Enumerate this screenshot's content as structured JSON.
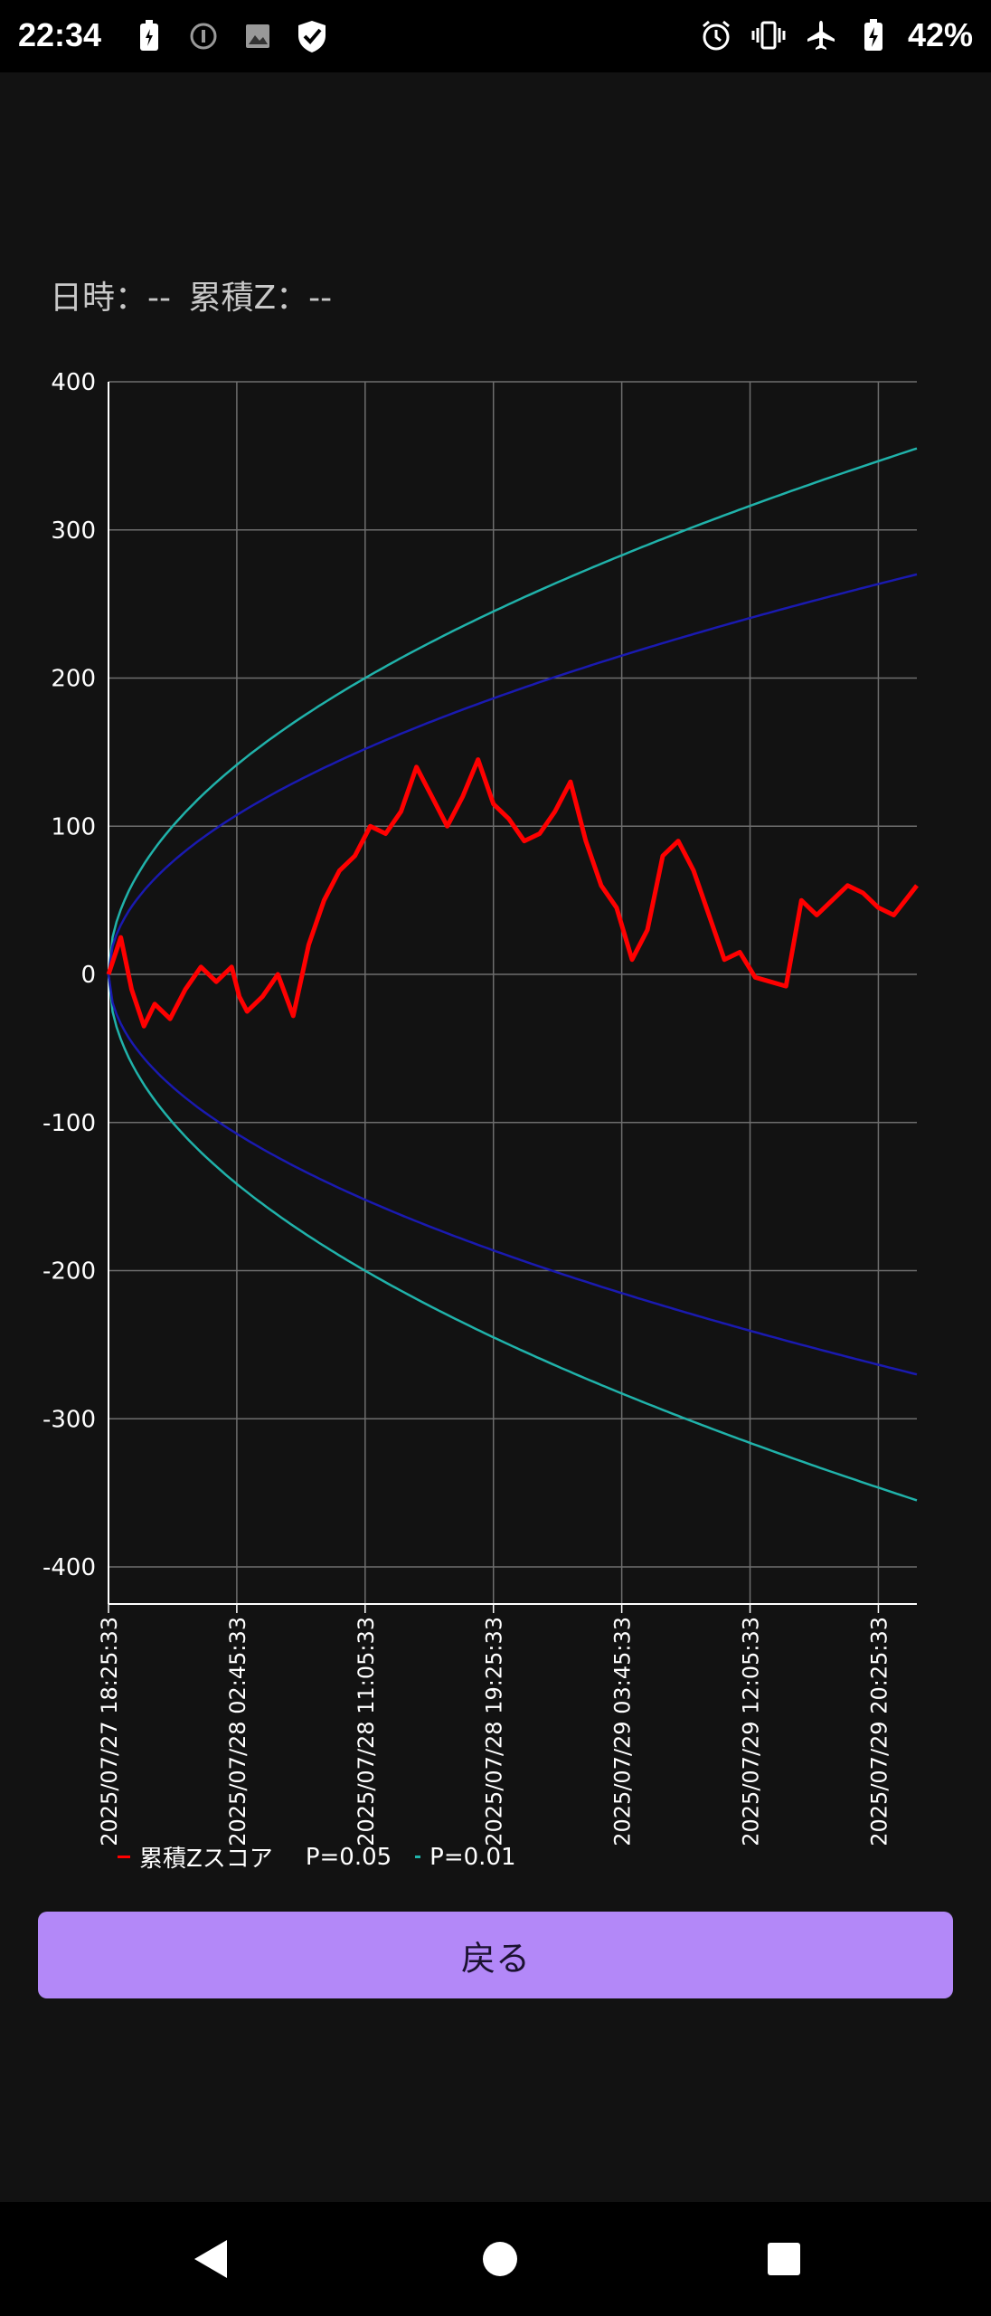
{
  "status_bar": {
    "time": "22:34",
    "left_icons": [
      "battery-saver-icon",
      "info-icon",
      "image-icon",
      "shield-check-icon"
    ],
    "right_icons": [
      "alarm-icon",
      "vibrate-icon",
      "airplane-icon",
      "battery-charging-icon"
    ],
    "battery": "42%"
  },
  "header": {
    "datetime_label": "日時：--",
    "cumulative_label": "累積Z：--"
  },
  "chart_data": {
    "type": "line",
    "x_tick_labels": [
      "2025/07/27 18:25:33",
      "2025/07/28 02:45:33",
      "2025/07/28 11:05:33",
      "2025/07/28 19:25:33",
      "2025/07/29 03:45:33",
      "2025/07/29 12:05:33",
      "2025/07/29 20:25:33"
    ],
    "x_range_hours": [
      0,
      52.5
    ],
    "ylim": [
      -425,
      400
    ],
    "y_ticks": [
      400,
      300,
      200,
      100,
      0,
      -100,
      -200,
      -300,
      -400
    ],
    "grid": true,
    "legend_position": "bottom-left",
    "series": [
      {
        "name": "累積Zスコア",
        "color": "#ff0000",
        "x": [
          0,
          0.8,
          1.5,
          2.3,
          3.0,
          4.0,
          5.0,
          6.0,
          7.0,
          8.0,
          8.5,
          9.0,
          10.0,
          11.0,
          12.0,
          13.0,
          14.0,
          15.0,
          16.0,
          17.0,
          18.0,
          19.0,
          20.0,
          21.0,
          22.0,
          23.0,
          24.0,
          25.0,
          26.0,
          27.0,
          28.0,
          29.0,
          30.0,
          31.0,
          32.0,
          33.0,
          34.0,
          35.0,
          36.0,
          37.0,
          38.0,
          39.0,
          40.0,
          41.0,
          42.0,
          43.0,
          44.0,
          45.0,
          46.0,
          47.0,
          48.0,
          49.0,
          50.0,
          51.0,
          52.5
        ],
        "y": [
          0,
          25,
          -10,
          -35,
          -20,
          -30,
          -10,
          5,
          -5,
          5,
          -15,
          -25,
          -15,
          0,
          -28,
          20,
          50,
          70,
          80,
          100,
          95,
          110,
          140,
          120,
          100,
          120,
          145,
          115,
          105,
          90,
          95,
          110,
          130,
          90,
          60,
          45,
          10,
          30,
          80,
          90,
          70,
          40,
          10,
          15,
          -2,
          -5,
          -8,
          50,
          40,
          50,
          60,
          55,
          45,
          40,
          60
        ]
      },
      {
        "name": "P=0.05",
        "color": "#20b2aa",
        "bound_at_end": 355
      },
      {
        "name": "P=0.01",
        "color": "#1a1ab0",
        "bound_at_end": 270
      }
    ]
  },
  "legend": [
    {
      "label": "累積Zスコア",
      "color": "#ff0000"
    },
    {
      "label": "P=0.05",
      "color": "#20b2aa"
    },
    {
      "label": "P=0.01",
      "color": "#1a1ab0"
    }
  ],
  "back_button": {
    "label": "戻る"
  },
  "nav_bar": {
    "icons": [
      "back-icon",
      "home-icon",
      "recents-icon"
    ]
  }
}
